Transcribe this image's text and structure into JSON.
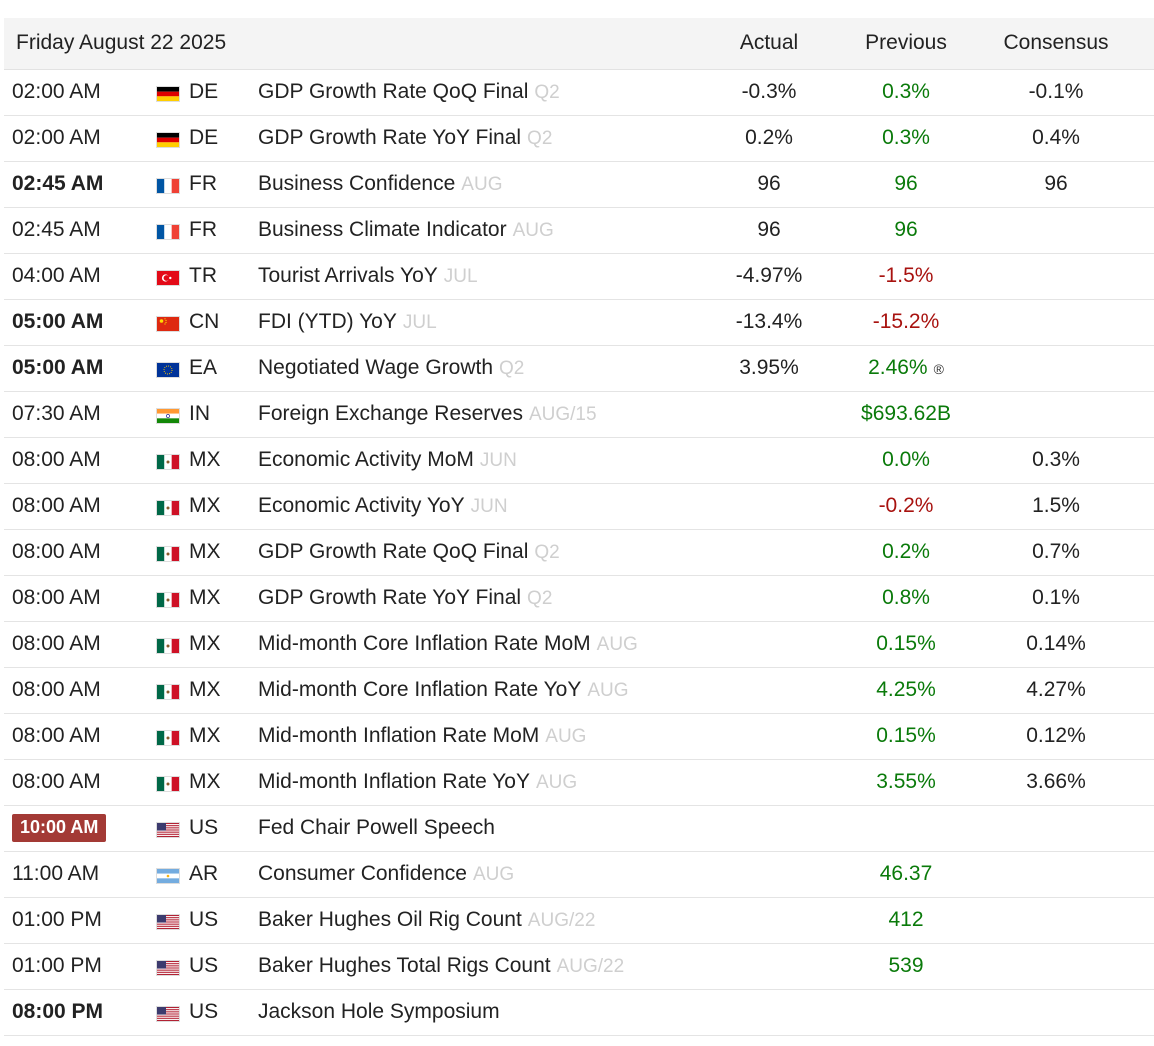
{
  "header": {
    "date": "Friday August 22 2025",
    "actual": "Actual",
    "previous": "Previous",
    "consensus": "Consensus"
  },
  "colors": {
    "positive": "#0a7a0a",
    "negative": "#a8120f",
    "highlight": "#a33a35"
  },
  "rows": [
    {
      "time": "02:00 AM",
      "country": "DE",
      "event": "GDP Growth Rate QoQ Final",
      "ref": "Q2",
      "actual": "-0.3%",
      "previous": "0.3%",
      "consensus": "-0.1%"
    },
    {
      "time": "02:00 AM",
      "country": "DE",
      "event": "GDP Growth Rate YoY Final",
      "ref": "Q2",
      "actual": "0.2%",
      "previous": "0.3%",
      "consensus": "0.4%"
    },
    {
      "time": "02:45 AM",
      "country": "FR",
      "event": "Business Confidence",
      "ref": "AUG",
      "actual": "96",
      "previous": "96",
      "consensus": "96"
    },
    {
      "time": "02:45 AM",
      "country": "FR",
      "event": "Business Climate Indicator",
      "ref": "AUG",
      "actual": "96",
      "previous": "96",
      "consensus": ""
    },
    {
      "time": "04:00 AM",
      "country": "TR",
      "event": "Tourist Arrivals YoY",
      "ref": "JUL",
      "actual": "-4.97%",
      "previous": "-1.5%",
      "consensus": ""
    },
    {
      "time": "05:00 AM",
      "country": "CN",
      "event": "FDI (YTD) YoY",
      "ref": "JUL",
      "actual": "-13.4%",
      "previous": "-15.2%",
      "consensus": ""
    },
    {
      "time": "05:00 AM",
      "country": "EA",
      "event": "Negotiated Wage Growth",
      "ref": "Q2",
      "actual": "3.95%",
      "previous": "2.46%",
      "revised": "®",
      "consensus": ""
    },
    {
      "time": "07:30 AM",
      "country": "IN",
      "event": "Foreign Exchange Reserves",
      "ref": "AUG/15",
      "actual": "",
      "previous": "$693.62B",
      "consensus": ""
    },
    {
      "time": "08:00 AM",
      "country": "MX",
      "event": "Economic Activity MoM",
      "ref": "JUN",
      "actual": "",
      "previous": "0.0%",
      "consensus": "0.3%"
    },
    {
      "time": "08:00 AM",
      "country": "MX",
      "event": "Economic Activity YoY",
      "ref": "JUN",
      "actual": "",
      "previous": "-0.2%",
      "consensus": "1.5%"
    },
    {
      "time": "08:00 AM",
      "country": "MX",
      "event": "GDP Growth Rate QoQ Final",
      "ref": "Q2",
      "actual": "",
      "previous": "0.2%",
      "consensus": "0.7%"
    },
    {
      "time": "08:00 AM",
      "country": "MX",
      "event": "GDP Growth Rate YoY Final",
      "ref": "Q2",
      "actual": "",
      "previous": "0.8%",
      "consensus": "0.1%"
    },
    {
      "time": "08:00 AM",
      "country": "MX",
      "event": "Mid-month Core Inflation Rate MoM",
      "ref": "AUG",
      "actual": "",
      "previous": "0.15%",
      "consensus": "0.14%"
    },
    {
      "time": "08:00 AM",
      "country": "MX",
      "event": "Mid-month Core Inflation Rate YoY",
      "ref": "AUG",
      "actual": "",
      "previous": "4.25%",
      "consensus": "4.27%"
    },
    {
      "time": "08:00 AM",
      "country": "MX",
      "event": "Mid-month Inflation Rate MoM",
      "ref": "AUG",
      "actual": "",
      "previous": "0.15%",
      "consensus": "0.12%"
    },
    {
      "time": "08:00 AM",
      "country": "MX",
      "event": "Mid-month Inflation Rate YoY",
      "ref": "AUG",
      "actual": "",
      "previous": "3.55%",
      "consensus": "3.66%"
    },
    {
      "time": "10:00 AM",
      "country": "US",
      "event": "Fed Chair Powell Speech",
      "ref": "",
      "actual": "",
      "previous": "",
      "consensus": ""
    },
    {
      "time": "11:00 AM",
      "country": "AR",
      "event": "Consumer Confidence",
      "ref": "AUG",
      "actual": "",
      "previous": "46.37",
      "consensus": ""
    },
    {
      "time": "01:00 PM",
      "country": "US",
      "event": "Baker Hughes Oil Rig Count",
      "ref": "AUG/22",
      "actual": "",
      "previous": "412",
      "consensus": ""
    },
    {
      "time": "01:00 PM",
      "country": "US",
      "event": "Baker Hughes Total Rigs Count",
      "ref": "AUG/22",
      "actual": "",
      "previous": "539",
      "consensus": ""
    },
    {
      "time": "08:00 PM",
      "country": "US",
      "event": "Jackson Hole Symposium",
      "ref": "",
      "actual": "",
      "previous": "",
      "consensus": ""
    }
  ]
}
